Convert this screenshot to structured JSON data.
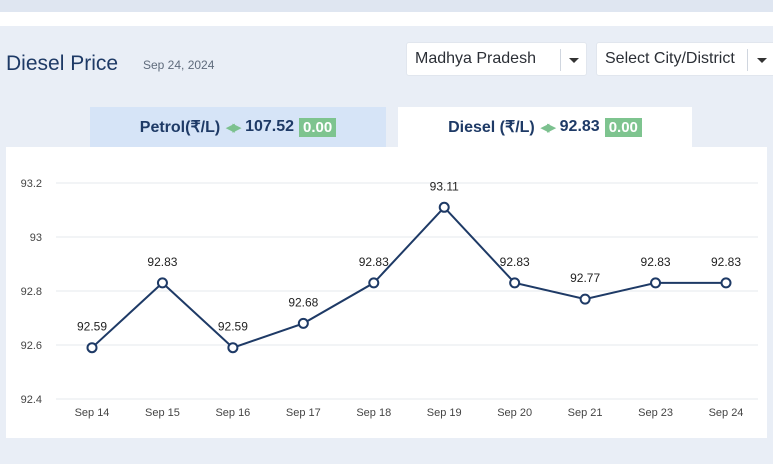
{
  "header": {
    "title": "Diesel Price",
    "date": "Sep 24, 2024"
  },
  "filters": {
    "state": "Madhya Pradesh",
    "city": "Select City/District"
  },
  "tabs": {
    "petrol": {
      "label": "Petrol(₹/L)",
      "price": "107.52",
      "change": "0.00"
    },
    "diesel": {
      "label": "Diesel (₹/L)",
      "price": "92.83",
      "change": "0.00"
    }
  },
  "colors": {
    "line": "#1e3a66",
    "badge": "#7ec48f",
    "active_tab_bg": "#ffffff",
    "inactive_tab_bg": "#d6e4f7"
  },
  "chart_data": {
    "type": "line",
    "title": "",
    "xlabel": "",
    "ylabel": "",
    "categories": [
      "Sep 14",
      "Sep 15",
      "Sep 16",
      "Sep 17",
      "Sep 18",
      "Sep 19",
      "Sep 20",
      "Sep 21",
      "Sep 23",
      "Sep 24"
    ],
    "values": [
      92.59,
      92.83,
      92.59,
      92.68,
      92.83,
      93.11,
      92.83,
      92.77,
      92.83,
      92.83
    ],
    "yticks": [
      "92.4",
      "92.6",
      "92.8",
      "93",
      "93.2"
    ],
    "ylim": [
      92.4,
      93.2
    ],
    "grid": true,
    "legend": "none"
  }
}
